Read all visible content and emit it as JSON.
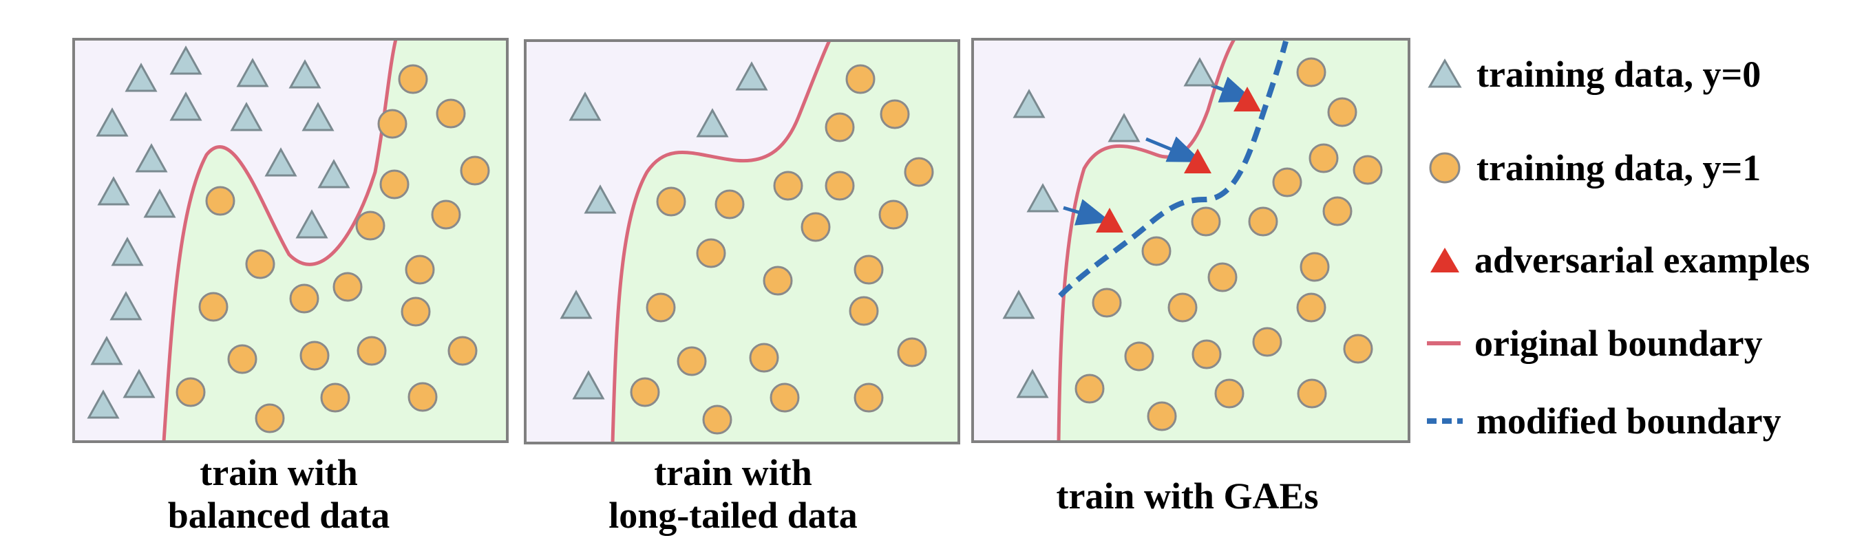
{
  "panels": [
    {
      "caption_line1": "train with",
      "caption_line2": "balanced data"
    },
    {
      "caption_line1": "train with",
      "caption_line2": "long-tailed data"
    },
    {
      "caption_line1": "train with GAEs",
      "caption_line2": ""
    }
  ],
  "legend": [
    {
      "icon": "triangle-icon",
      "label": "training data, y=0"
    },
    {
      "icon": "circle-icon",
      "label": "training data, y=1"
    },
    {
      "icon": "red-triangle-icon",
      "label": "adversarial examples"
    },
    {
      "icon": "solid-line-icon",
      "label": "original boundary"
    },
    {
      "icon": "dashed-line-icon",
      "label": "modified boundary"
    }
  ],
  "colors": {
    "class0_region": "#f5f2fb",
    "class1_region": "#e4f9e0",
    "panel_border": "#808080",
    "triangle_fill": "#b3cfd6",
    "triangle_stroke": "#7a8a90",
    "circle_fill": "#f4b75c",
    "circle_stroke": "#8a8a8a",
    "adversarial": "#e0352b",
    "original_boundary": "#d9687a",
    "modified_boundary": "#2f6db5",
    "arrow": "#2f6db5"
  }
}
